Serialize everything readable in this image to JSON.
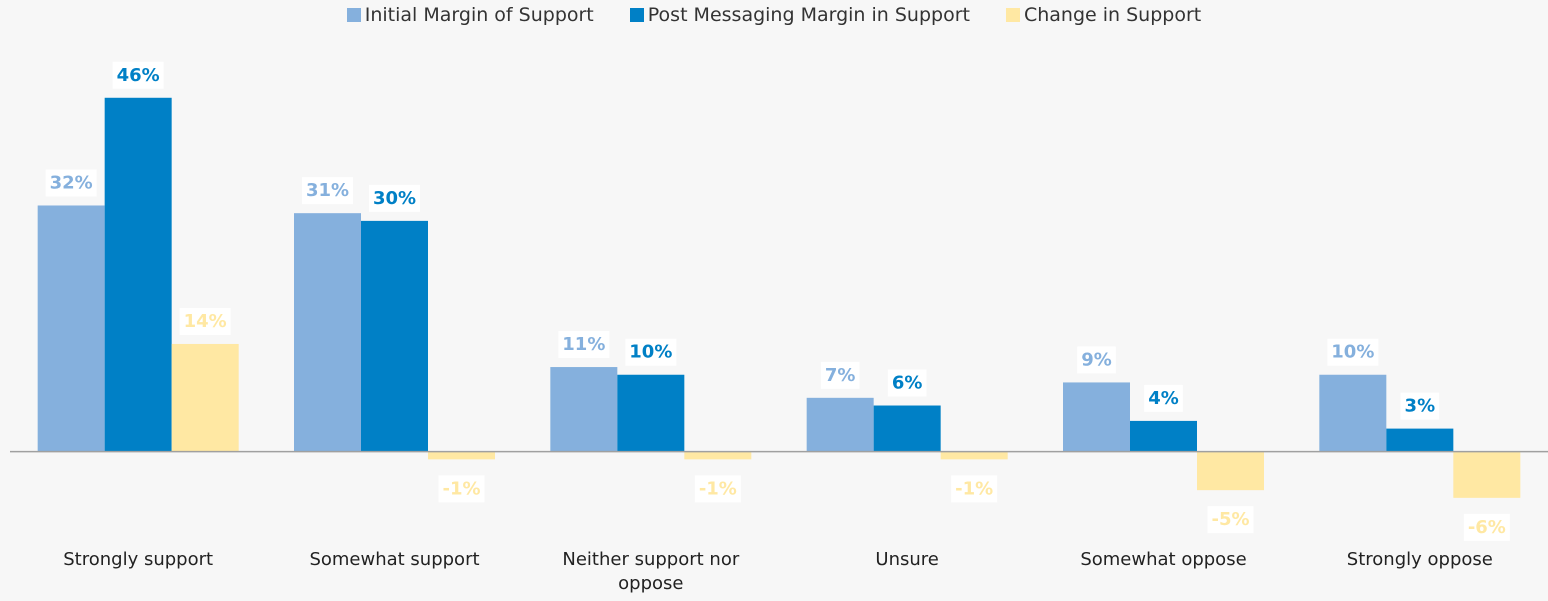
{
  "chart_data": {
    "type": "bar",
    "categories": [
      "Strongly support",
      "Somewhat support",
      "Neither support nor oppose",
      "Unsure",
      "Somewhat oppose",
      "Strongly oppose"
    ],
    "series": [
      {
        "name": "Initial Margin of Support",
        "color": "#85b0dd",
        "values": [
          32,
          31,
          11,
          7,
          9,
          10
        ],
        "value_labels": [
          "32%",
          "31%",
          "11%",
          "7%",
          "9%",
          "10%"
        ]
      },
      {
        "name": "Post Messaging Margin in Support",
        "color": "#0080c6",
        "values": [
          46,
          30,
          10,
          6,
          4,
          3
        ],
        "value_labels": [
          "46%",
          "30%",
          "10%",
          "6%",
          "4%",
          "3%"
        ]
      },
      {
        "name": "Change in Support",
        "color": "#ffe8a3",
        "values": [
          14,
          -1,
          -1,
          -1,
          -5,
          -6
        ],
        "value_labels": [
          "14%",
          "-1%",
          "-1%",
          "-1%",
          "-5%",
          "-6%"
        ]
      }
    ],
    "ylim": [
      -12,
      50
    ]
  }
}
